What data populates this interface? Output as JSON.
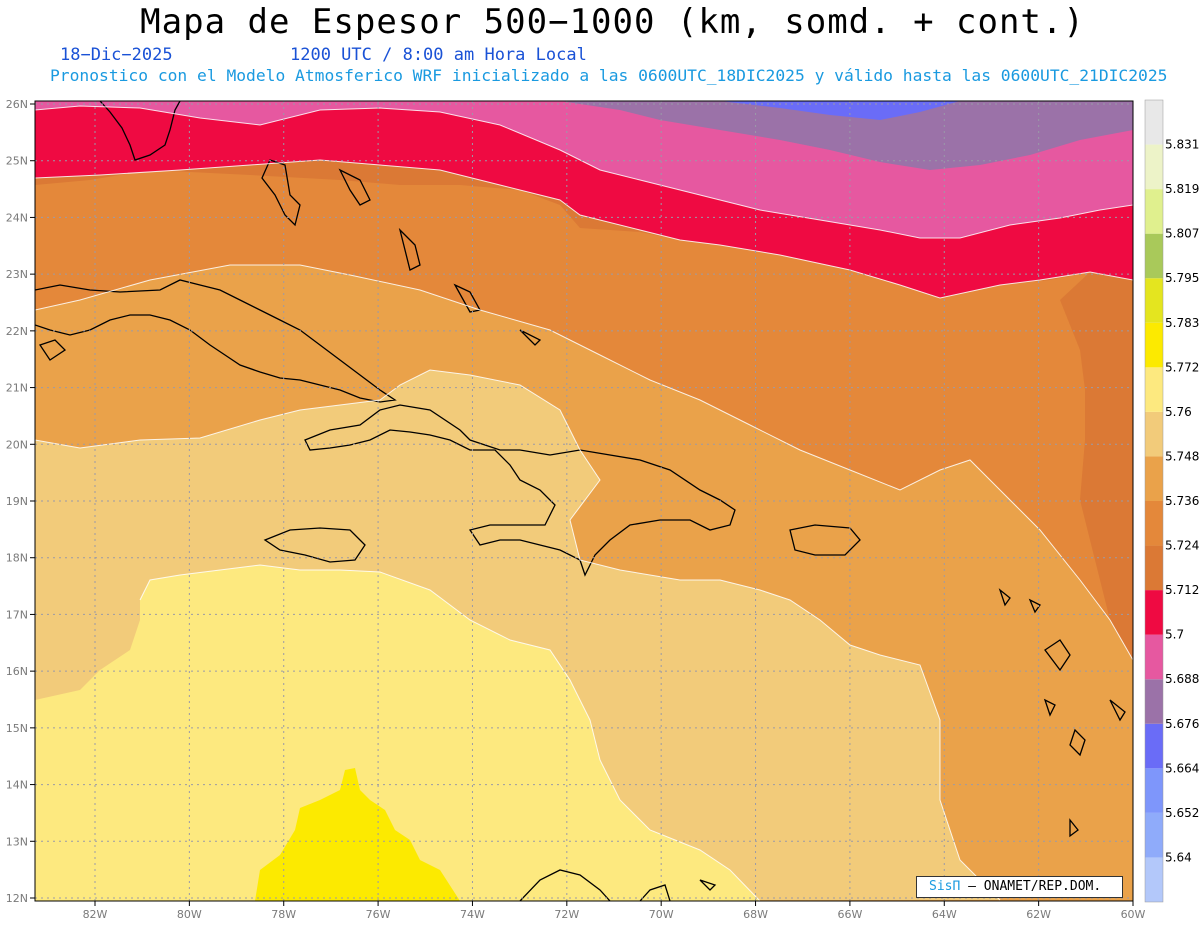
{
  "header": {
    "title": "Mapa de Espesor 500−1000 (km, somd. + cont.)",
    "date": "18−Dic−2025",
    "time": "1200 UTC / 8:00 am Hora Local",
    "description": "Pronostico con el Modelo Atmosferico WRF inicializado a las 0600UTC_18DIC2025 y válido hasta las  0600UTC_21DIC2025"
  },
  "map": {
    "lat_labels": [
      "26N",
      "25N",
      "24N",
      "23N",
      "22N",
      "21N",
      "20N",
      "19N",
      "18N",
      "17N",
      "16N",
      "15N",
      "14N",
      "13N",
      "12N"
    ],
    "lon_labels": [
      "82W",
      "80W",
      "78W",
      "76W",
      "74W",
      "72W",
      "70W",
      "68W",
      "66W",
      "64W",
      "62W",
      "60W"
    ]
  },
  "colorbar": {
    "levels": [
      "5.64",
      "5.652",
      "5.664",
      "5.676",
      "5.688",
      "5.7",
      "5.712",
      "5.724",
      "5.736",
      "5.748",
      "5.76",
      "5.772",
      "5.783",
      "5.795",
      "5.807",
      "5.819",
      "5.831"
    ],
    "colors": [
      "#b3c8fa",
      "#8fabfa",
      "#7e96fb",
      "#6a6cf7",
      "#9b72a8",
      "#e658a0",
      "#ef0a42",
      "#db7935",
      "#e4883a",
      "#eaa24a",
      "#f2cb7a",
      "#fde97f",
      "#fcea00",
      "#e4e51f",
      "#a9c95a",
      "#e0f08e",
      "#edf3c8",
      "#e8e8e8"
    ]
  },
  "credit": {
    "brand": "SisΠ",
    "org": "– ONAMET/REP.DOM."
  }
}
